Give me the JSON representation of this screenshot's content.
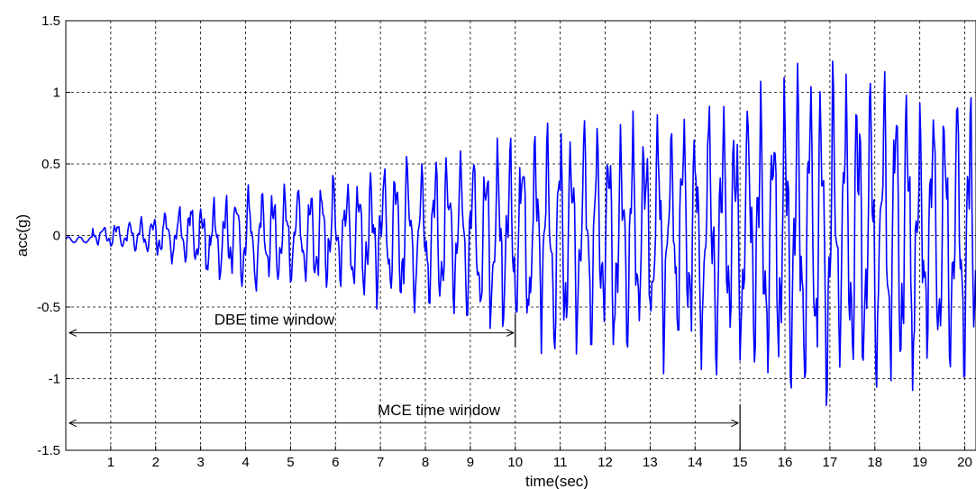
{
  "chart_data": {
    "type": "line",
    "title": "",
    "xlabel": "time(sec)",
    "ylabel": "acc(g)",
    "xlim": [
      0,
      20.25
    ],
    "ylim": [
      -1.5,
      1.5
    ],
    "xticks": [
      1,
      2,
      3,
      4,
      5,
      6,
      7,
      8,
      9,
      10,
      11,
      12,
      13,
      14,
      15,
      16,
      17,
      18,
      19,
      20
    ],
    "yticks": [
      -1.5,
      -1,
      -0.5,
      0,
      0.5,
      1,
      1.5
    ],
    "xtick_labels": [
      "1",
      "2",
      "3",
      "4",
      "5",
      "6",
      "7",
      "8",
      "9",
      "10",
      "11",
      "12",
      "13",
      "14",
      "15",
      "16",
      "17",
      "18",
      "19",
      "20"
    ],
    "ytick_labels": [
      "-1.5",
      "-1",
      "-0.5",
      "0",
      "0.5",
      "1",
      "1.5"
    ],
    "grid": true,
    "line_color": "#0000ff",
    "envelope": {
      "x": [
        0,
        1,
        2,
        3,
        4,
        5,
        6,
        7,
        8,
        9,
        10,
        11,
        12,
        13,
        14,
        15,
        16,
        17,
        18,
        19,
        20,
        20.25
      ],
      "amp": [
        0.03,
        0.08,
        0.13,
        0.22,
        0.32,
        0.33,
        0.38,
        0.44,
        0.5,
        0.55,
        0.62,
        0.7,
        0.72,
        0.75,
        0.8,
        0.85,
        0.95,
        1.05,
        0.98,
        0.95,
        0.92,
        0.9
      ]
    },
    "annotations": [
      {
        "text": "DBE time window",
        "x_start": 0,
        "x_end": 10,
        "y": -0.68,
        "vline_y": [
          -0.55,
          -0.78
        ]
      },
      {
        "text": "MCE time window",
        "x_start": 0,
        "x_end": 15,
        "y": -1.31,
        "vline_y": [
          -1.18,
          -1.5
        ]
      }
    ]
  }
}
